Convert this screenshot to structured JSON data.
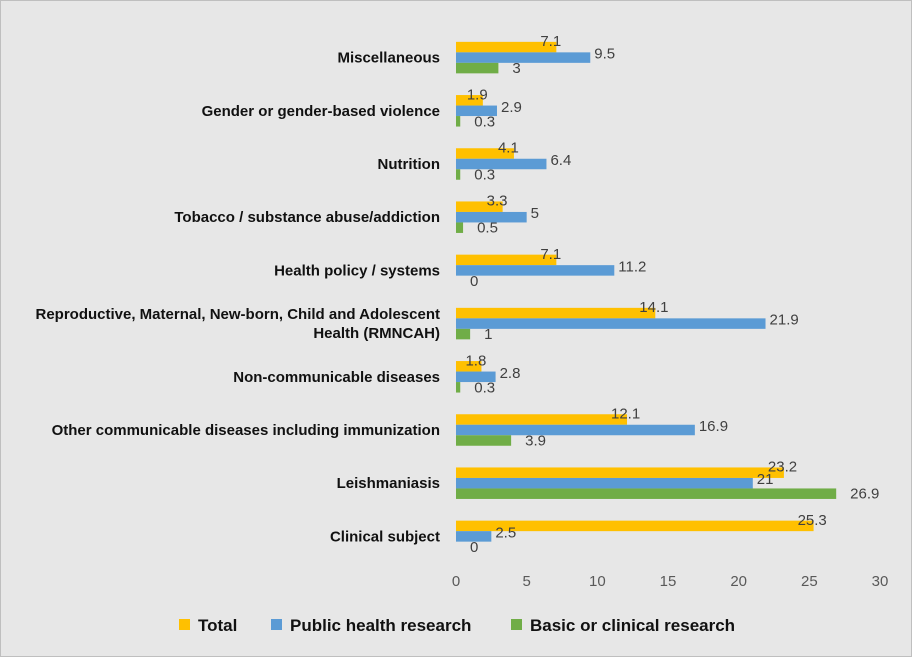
{
  "chart_data": {
    "type": "bar",
    "orientation": "horizontal",
    "categories": [
      "Miscellaneous",
      "Gender or gender-based violence",
      "Nutrition",
      "Tobacco / substance abuse/addiction",
      "Health policy / systems",
      "Reproductive, Maternal, New-born, Child and Adolescent Health (RMNCAH)",
      "Non-communicable diseases",
      "Other communicable diseases including immunization",
      "Leishmaniasis",
      "Clinical subject"
    ],
    "category_lines": [
      [
        "Miscellaneous"
      ],
      [
        "Gender or gender-based violence"
      ],
      [
        "Nutrition"
      ],
      [
        "Tobacco / substance abuse/addiction"
      ],
      [
        "Health policy / systems"
      ],
      [
        "Reproductive, Maternal, New-born, Child and Adolescent",
        "Health (RMNCAH)"
      ],
      [
        "Non-communicable diseases"
      ],
      [
        "Other communicable diseases including immunization"
      ],
      [
        "Leishmaniasis"
      ],
      [
        "Clinical subject"
      ]
    ],
    "series": [
      {
        "name": "Total",
        "color": "#ffc000",
        "values": [
          7.1,
          1.9,
          4.1,
          3.3,
          7.1,
          14.1,
          1.8,
          12.1,
          23.2,
          25.3
        ]
      },
      {
        "name": "Public health research",
        "color": "#5b9bd5",
        "values": [
          9.5,
          2.9,
          6.4,
          5,
          11.2,
          21.9,
          2.8,
          16.9,
          21,
          2.5
        ]
      },
      {
        "name": "Basic or clinical research",
        "color": "#70ad47",
        "values": [
          3,
          0.3,
          0.3,
          0.5,
          0,
          1,
          0.3,
          3.9,
          26.9,
          0
        ]
      }
    ],
    "xlim": [
      0,
      30
    ],
    "xticks": [
      0,
      5,
      10,
      15,
      20,
      25,
      30
    ],
    "title": "",
    "xlabel": "",
    "ylabel": "",
    "grid": false,
    "legend_position": "bottom"
  }
}
